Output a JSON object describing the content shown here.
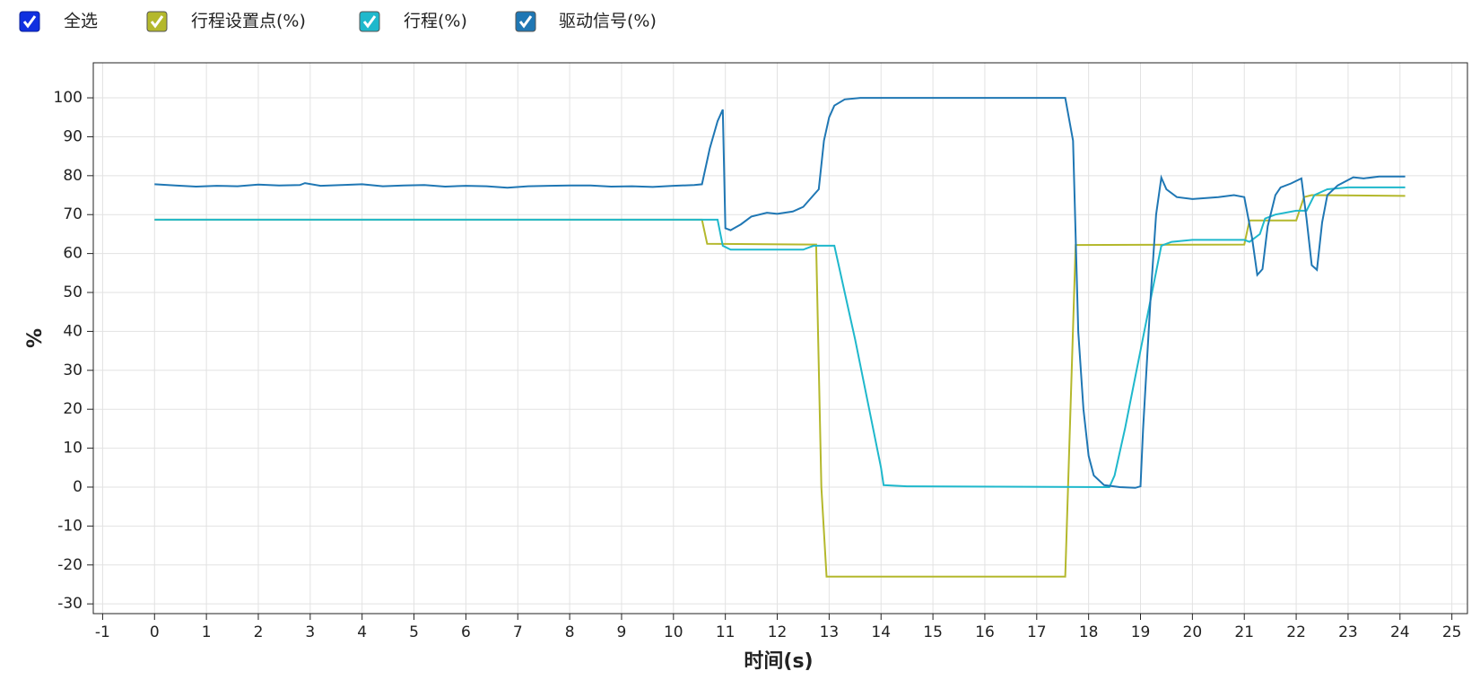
{
  "select_all_label": "全选",
  "chart_data": {
    "type": "line",
    "xlabel": "时间(s)",
    "ylabel": "%",
    "xlim": [
      -1.18,
      25.3
    ],
    "ylim": [
      -32.5,
      109
    ],
    "xticks": [
      -1,
      0,
      1,
      2,
      3,
      4,
      5,
      6,
      7,
      8,
      9,
      10,
      11,
      12,
      13,
      14,
      15,
      16,
      17,
      18,
      19,
      20,
      21,
      22,
      23,
      24,
      25
    ],
    "yticks": [
      -30,
      -20,
      -10,
      0,
      10,
      20,
      30,
      40,
      50,
      60,
      70,
      80,
      90,
      100
    ],
    "grid": true,
    "series": [
      {
        "name": "行程设置点(%)",
        "color": "#b4b82c",
        "x": [
          0,
          10.55,
          10.65,
          12.75,
          12.85,
          12.95,
          17.55,
          17.75,
          21.0,
          21.1,
          22.0,
          22.15,
          22.3,
          24.1
        ],
        "values": [
          68.7,
          68.7,
          62.5,
          62.3,
          0,
          -23,
          -23,
          62.2,
          62.3,
          68.5,
          68.5,
          74.5,
          75,
          74.8
        ]
      },
      {
        "name": "行程(%)",
        "color": "#1fb8cc",
        "x": [
          0,
          10.85,
          10.95,
          11.1,
          12.5,
          12.7,
          13.1,
          13.2,
          13.35,
          13.5,
          14.0,
          14.05,
          14.5,
          18.4,
          18.5,
          18.7,
          18.85,
          19.4,
          19.6,
          20.0,
          21.0,
          21.1,
          21.3,
          21.4,
          21.6,
          22.0,
          22.2,
          22.35,
          22.6,
          23.0,
          24.1
        ],
        "values": [
          68.7,
          68.7,
          62,
          61,
          61,
          62,
          62,
          56,
          47,
          38,
          5,
          0.5,
          0.2,
          0,
          3,
          15,
          25,
          62,
          63,
          63.5,
          63.5,
          63,
          65,
          69,
          70,
          71,
          71,
          75,
          76.5,
          77,
          77
        ]
      },
      {
        "name": "驱动信号(%)",
        "color": "#1f77b4",
        "x": [
          0,
          0.4,
          0.8,
          1.2,
          1.6,
          2.0,
          2.4,
          2.8,
          2.9,
          3.2,
          3.6,
          4.0,
          4.4,
          4.8,
          5.2,
          5.6,
          6.0,
          6.4,
          6.8,
          7.2,
          7.6,
          8.0,
          8.4,
          8.8,
          9.2,
          9.6,
          10.0,
          10.4,
          10.55,
          10.7,
          10.85,
          10.95,
          11.0,
          11.1,
          11.3,
          11.5,
          11.8,
          12.0,
          12.3,
          12.5,
          12.7,
          12.8,
          12.9,
          13.0,
          13.1,
          13.3,
          13.6,
          17.55,
          17.7,
          17.8,
          17.9,
          18.0,
          18.1,
          18.3,
          18.6,
          18.9,
          19.0,
          19.05,
          19.2,
          19.3,
          19.4,
          19.5,
          19.7,
          20.0,
          20.5,
          20.8,
          21.0,
          21.15,
          21.25,
          21.35,
          21.45,
          21.6,
          21.7,
          21.9,
          22.1,
          22.2,
          22.3,
          22.4,
          22.5,
          22.6,
          22.8,
          23.1,
          23.3,
          23.6,
          24.1
        ],
        "values": [
          77.8,
          77.5,
          77.2,
          77.4,
          77.3,
          77.7,
          77.5,
          77.6,
          78.1,
          77.4,
          77.6,
          77.8,
          77.3,
          77.5,
          77.6,
          77.2,
          77.4,
          77.3,
          76.9,
          77.3,
          77.4,
          77.5,
          77.5,
          77.2,
          77.3,
          77.1,
          77.4,
          77.6,
          77.8,
          87,
          94,
          97,
          66.5,
          66,
          67.5,
          69.5,
          70.5,
          70.2,
          70.8,
          72,
          75,
          76.5,
          89,
          95,
          98,
          99.6,
          100,
          100,
          89,
          40,
          20,
          8,
          3,
          0.5,
          0,
          -0.2,
          0.2,
          15,
          50,
          70,
          79.5,
          76.5,
          74.5,
          74,
          74.5,
          75,
          74.5,
          64,
          54.5,
          56,
          67,
          75,
          77,
          78,
          79.3,
          69,
          57,
          55.8,
          68,
          75,
          77.5,
          79.6,
          79.3,
          79.8,
          79.8
        ]
      }
    ]
  }
}
